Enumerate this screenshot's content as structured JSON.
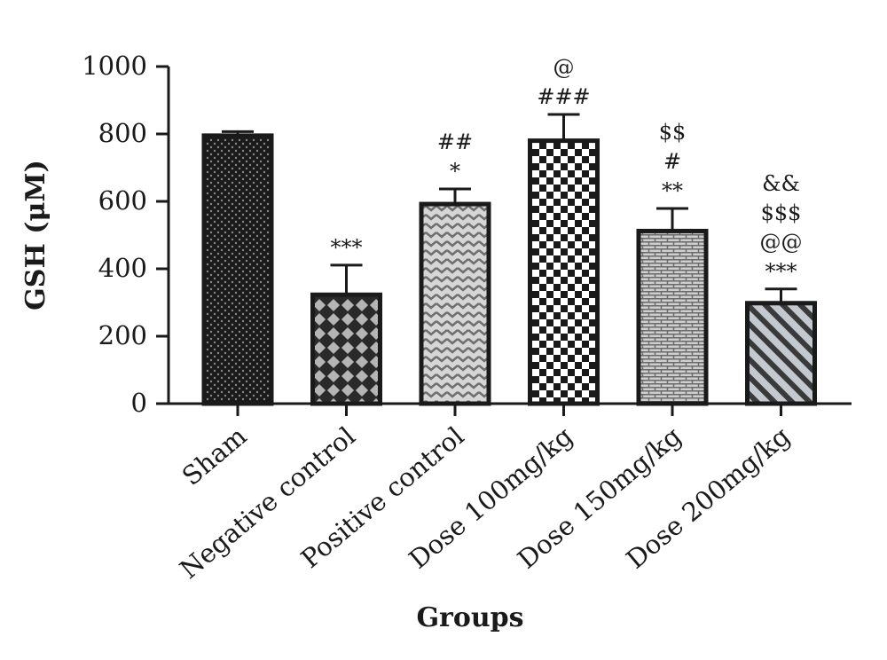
{
  "chart_data": {
    "type": "bar",
    "xlabel": "Groups",
    "ylabel": "GSH (μM)",
    "ylim": [
      0,
      1000
    ],
    "yticks": [
      0,
      200,
      400,
      600,
      800,
      1000
    ],
    "grid": false,
    "categories": [
      "Sham",
      "Negative control",
      "Positive control",
      "Dose 100mg/kg",
      "Dose 150mg/kg",
      "Dose 200mg/kg"
    ],
    "values": [
      795,
      323,
      592,
      780,
      512,
      298
    ],
    "errors": [
      12,
      88,
      45,
      78,
      67,
      42
    ],
    "annotations": [
      [],
      [
        "***"
      ],
      [
        "*",
        "##"
      ],
      [
        "###",
        "@"
      ],
      [
        "**",
        "#",
        "$$"
      ],
      [
        "***",
        "@@",
        "$$$",
        "&&"
      ]
    ],
    "patterns": [
      "dots",
      "diamonds",
      "chevrons",
      "checkerboard",
      "bricks",
      "diagonal-stripes"
    ]
  }
}
